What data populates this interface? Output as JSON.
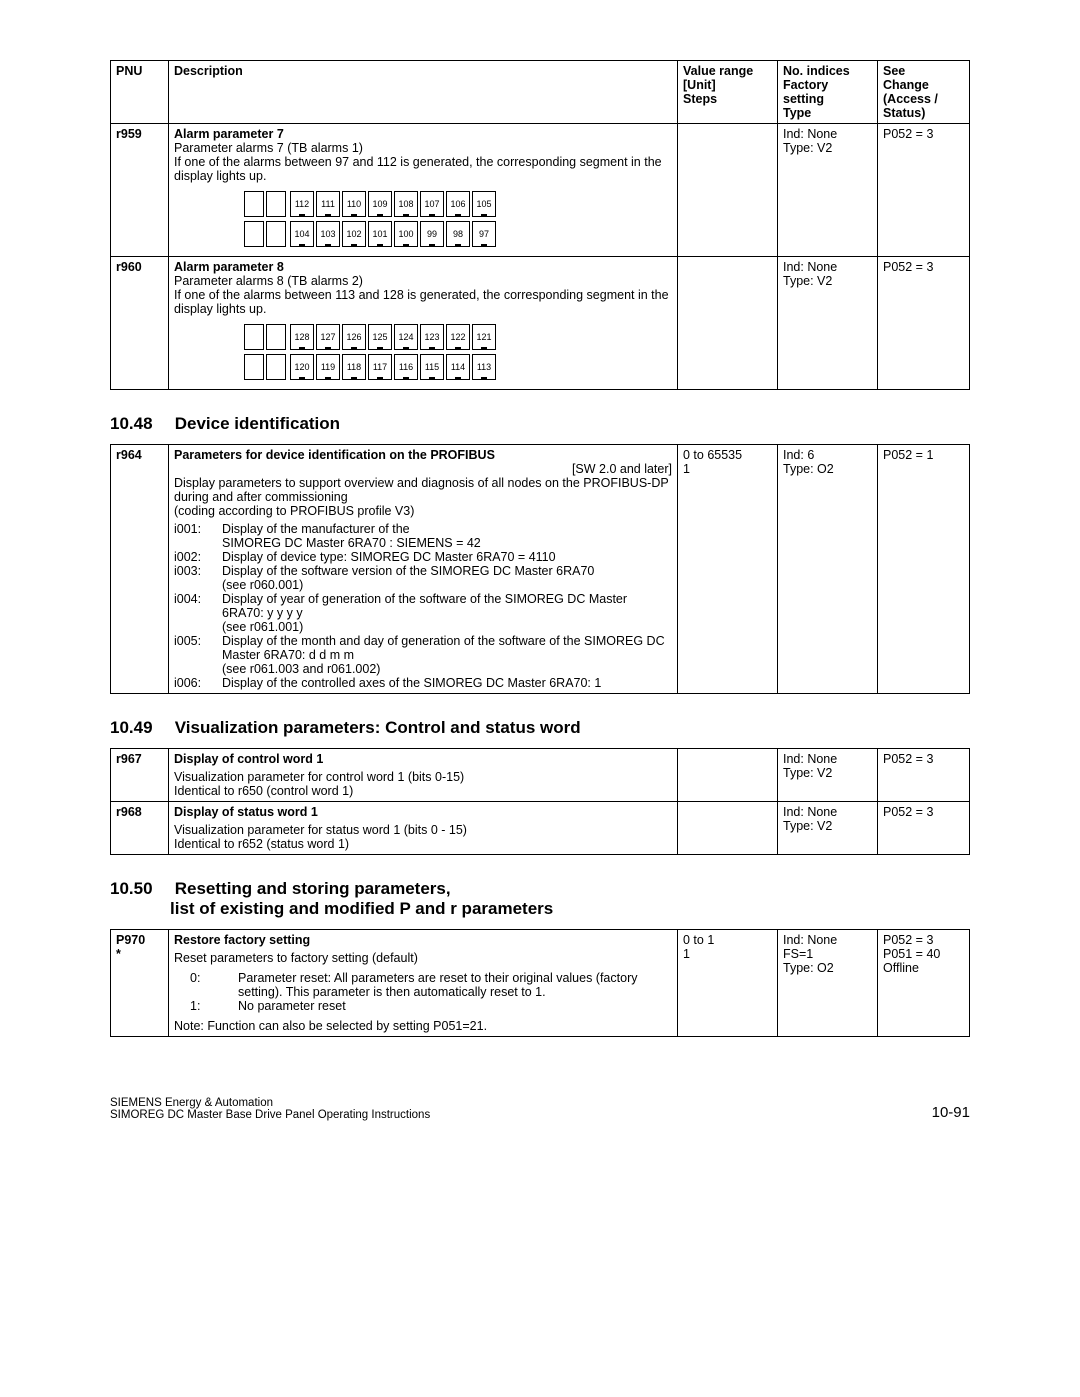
{
  "columns": {
    "c1": "PNU",
    "c2": "Description",
    "c3": "Value range\n[Unit]\nSteps",
    "c4": "No. indices\nFactory setting\nType",
    "c5": "See\nChange\n(Access /\nStatus)"
  },
  "table1": {
    "row1": {
      "pnu": "r959",
      "title": "Alarm parameter 7",
      "line1": "Parameter alarms 7 (TB alarms 1)",
      "line2": "If one of the alarms between 97 and 112 is generated, the corresponding segment in the display lights up.",
      "segTop": [
        "112",
        "111",
        "110",
        "109",
        "108",
        "107",
        "106",
        "105"
      ],
      "segBot": [
        "104",
        "103",
        "102",
        "101",
        "100",
        "99",
        "98",
        "97"
      ],
      "indices": "Ind: None\nType: V2",
      "access": "P052 = 3"
    },
    "row2": {
      "pnu": "r960",
      "title": "Alarm parameter 8",
      "line1": "Parameter alarms 8 (TB alarms 2)",
      "line2": "If one of the alarms between 113 and 128 is generated, the corresponding segment in the display lights up.",
      "segTop": [
        "128",
        "127",
        "126",
        "125",
        "124",
        "123",
        "122",
        "121"
      ],
      "segBot": [
        "120",
        "119",
        "118",
        "117",
        "116",
        "115",
        "114",
        "113"
      ],
      "indices": "Ind: None\nType: V2",
      "access": "P052 = 3"
    }
  },
  "section1": {
    "num": "10.48",
    "title": "Device identification"
  },
  "table2": {
    "pnu": "r964",
    "title": "Parameters for device identification on the PROFIBUS",
    "sw": "[SW 2.0 and later]",
    "range": "0 to 65535\n1",
    "indices": "Ind: 6\nType: O2",
    "access": "P052 = 1",
    "intro": "Display parameters to support overview and diagnosis of all nodes on the PROFIBUS-DP during and after commissioning\n(coding according to PROFIBUS profile V3)",
    "idx": {
      "i001l": "i001:",
      "i001t": "Display of the manufacturer of the\nSIMOREG DC Master 6RA70 : SIEMENS = 42",
      "i002l": "i002:",
      "i002t": "Display of device type: SIMOREG DC Master 6RA70 = 4110",
      "i003l": "i003:",
      "i003t": "Display of the software version of the SIMOREG DC Master 6RA70\n(see r060.001)",
      "i004l": "i004:",
      "i004t": "Display of year of generation of the software of the SIMOREG DC Master 6RA70: y y y y\n(see r061.001)",
      "i005l": "i005:",
      "i005t": "Display of the month and day of generation of the software of the SIMOREG DC Master 6RA70: d d m m\n(see r061.003 and r061.002)",
      "i006l": "i006:",
      "i006t": "Display of the controlled axes of the SIMOREG DC Master 6RA70: 1"
    }
  },
  "section2": {
    "num": "10.49",
    "title": "Visualization parameters: Control and status word"
  },
  "table3": {
    "r1": {
      "pnu": "r967",
      "title": "Display of control word 1",
      "body": "Visualization parameter for control word 1 (bits 0-15)\nIdentical to r650 (control word 1)",
      "indices": "Ind: None\nType: V2",
      "access": "P052 = 3"
    },
    "r2": {
      "pnu": "r968",
      "title": "Display of status word 1",
      "body": "Visualization parameter for status word 1 (bits 0 - 15)\nIdentical to r652 (status word 1)",
      "indices": "Ind: None\nType: V2",
      "access": "P052 = 3"
    }
  },
  "section3": {
    "num": "10.50",
    "title1": "Resetting and storing parameters,",
    "title2": "list of existing and modified P and r parameters"
  },
  "table4": {
    "pnu": "P970\n*",
    "title": "Restore factory setting",
    "sub": "Reset parameters to factory setting (default)",
    "opt0l": "0:",
    "opt0t": "Parameter reset: All parameters are reset to their original values (factory setting). This parameter is then automatically reset to 1.",
    "opt1l": "1:",
    "opt1t": "No parameter reset",
    "note": "Note: Function can also be selected by setting P051=21.",
    "range": "0 to 1\n1",
    "indices": "Ind: None\nFS=1\nType: O2",
    "access": "P052 = 3\nP051 = 40\nOffline"
  },
  "footer": {
    "l1": "SIEMENS  Energy & Automation",
    "l2": "SIMOREG DC Master Base Drive Panel  Operating Instructions",
    "page": "10-91"
  }
}
